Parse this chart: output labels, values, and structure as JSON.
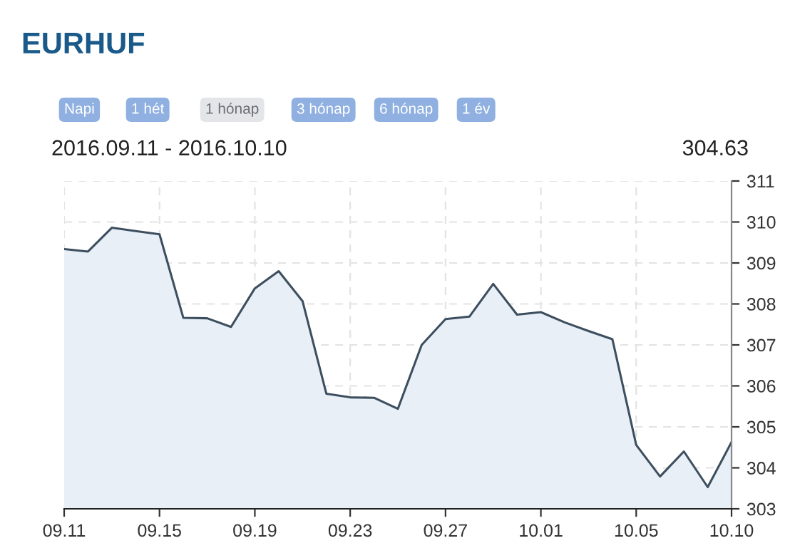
{
  "chart_data": {
    "type": "area",
    "title": "EURHUF",
    "annotations": [
      "Napi",
      "1 hét",
      "1 hónap",
      "3 hónap",
      "6 hónap",
      "1 év",
      "2016.09.11 - 2016.10.10",
      "304.63"
    ],
    "categories": [
      "09.11",
      null,
      null,
      null,
      "09.15",
      null,
      null,
      null,
      "09.19",
      null,
      null,
      null,
      "09.23",
      null,
      null,
      null,
      "09.27",
      null,
      null,
      null,
      "10.01",
      null,
      null,
      null,
      "10.05",
      null,
      null,
      null,
      "10.10"
    ],
    "series": [
      {
        "color": "#3d4f5f",
        "values": [
          309.34,
          309.28,
          309.86,
          309.78,
          309.7,
          307.66,
          307.65,
          307.44,
          308.38,
          308.8,
          308.07,
          305.81,
          305.72,
          305.71,
          305.44,
          307.0,
          307.63,
          307.69,
          308.49,
          307.74,
          307.8,
          307.55,
          307.34,
          307.14,
          304.56,
          303.79,
          304.4,
          303.53,
          304.63
        ]
      }
    ],
    "ylim": [
      303,
      311
    ],
    "yticks": [
      303,
      304,
      305,
      306,
      307,
      308,
      309,
      310,
      311
    ],
    "grid": true,
    "line_style": "solid",
    "marker": "none"
  }
}
